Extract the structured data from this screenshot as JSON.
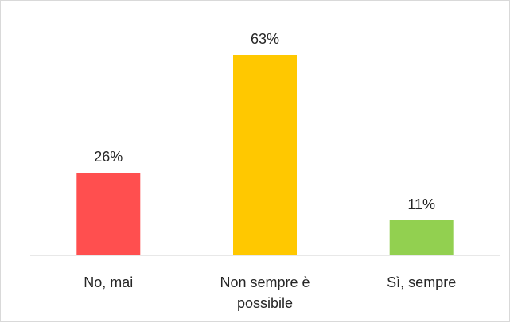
{
  "chart_data": {
    "type": "bar",
    "categories": [
      "No, mai",
      "Non sempre è possibile",
      "Sì, sempre"
    ],
    "category_label_lines": [
      [
        "No, mai"
      ],
      [
        "Non sempre è",
        "possibile"
      ],
      [
        "Sì, sempre"
      ]
    ],
    "values": [
      26,
      63,
      11
    ],
    "value_labels": [
      "26%",
      "63%",
      "11%"
    ],
    "colors": [
      "#ff4f4f",
      "#ffc800",
      "#92d050"
    ],
    "ylim": [
      0,
      70
    ],
    "grid": false,
    "legend": "none",
    "title": "",
    "xlabel": "",
    "ylabel": ""
  }
}
